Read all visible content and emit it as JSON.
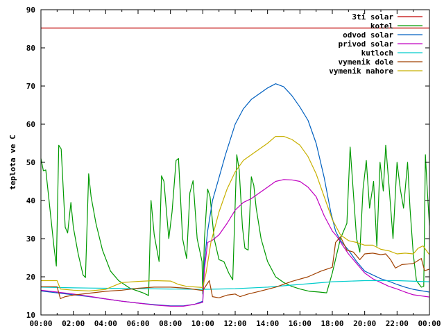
{
  "chart_data": {
    "type": "line",
    "ylabel": "teplota ve C",
    "xlabel": "",
    "ylim": [
      10,
      90
    ],
    "yticks": [
      "10",
      "20",
      "30",
      "40",
      "50",
      "60",
      "70",
      "80",
      "90"
    ],
    "xlim": [
      0,
      24
    ],
    "xticks": [
      "00:00",
      "02:00",
      "04:00",
      "06:00",
      "08:00",
      "10:00",
      "12:00",
      "14:00",
      "16:00",
      "18:00",
      "20:00",
      "22:00",
      "00:00"
    ],
    "grid": false,
    "legend_position": "top-right",
    "series": [
      {
        "name": "3ti solar",
        "color": "#c00000",
        "points": [
          [
            0,
            85.2
          ],
          [
            24,
            85.2
          ]
        ]
      },
      {
        "name": "kotel",
        "color": "#009900",
        "points": [
          [
            0,
            51
          ],
          [
            0.15,
            47.8
          ],
          [
            0.3,
            48
          ],
          [
            0.5,
            40
          ],
          [
            0.8,
            28
          ],
          [
            0.95,
            22.8
          ],
          [
            1.1,
            54.5
          ],
          [
            1.25,
            53.5
          ],
          [
            1.5,
            33
          ],
          [
            1.65,
            31.5
          ],
          [
            1.85,
            39.5
          ],
          [
            2.0,
            33
          ],
          [
            2.3,
            26
          ],
          [
            2.6,
            20.5
          ],
          [
            2.75,
            19.8
          ],
          [
            2.95,
            47
          ],
          [
            3.1,
            41
          ],
          [
            3.4,
            34
          ],
          [
            3.8,
            27
          ],
          [
            4.3,
            21.5
          ],
          [
            4.8,
            19
          ],
          [
            5.5,
            17
          ],
          [
            6.3,
            15.8
          ],
          [
            6.65,
            15.1
          ],
          [
            6.8,
            40
          ],
          [
            7.0,
            31
          ],
          [
            7.3,
            24
          ],
          [
            7.45,
            46.5
          ],
          [
            7.6,
            45
          ],
          [
            7.9,
            30
          ],
          [
            8.1,
            37
          ],
          [
            8.35,
            50.5
          ],
          [
            8.5,
            51
          ],
          [
            8.75,
            30
          ],
          [
            9.0,
            24.8
          ],
          [
            9.2,
            42
          ],
          [
            9.4,
            45.2
          ],
          [
            9.65,
            30
          ],
          [
            9.95,
            24
          ],
          [
            10.0,
            15.5
          ],
          [
            10.1,
            30
          ],
          [
            10.3,
            43
          ],
          [
            10.45,
            41
          ],
          [
            10.7,
            30
          ],
          [
            11.0,
            24.5
          ],
          [
            11.3,
            24
          ],
          [
            11.6,
            21
          ],
          [
            11.85,
            19.2
          ],
          [
            12.1,
            52
          ],
          [
            12.25,
            48
          ],
          [
            12.45,
            33
          ],
          [
            12.6,
            27.5
          ],
          [
            12.8,
            27
          ],
          [
            13.0,
            46.2
          ],
          [
            13.15,
            44
          ],
          [
            13.3,
            38
          ],
          [
            13.6,
            30
          ],
          [
            14.0,
            24
          ],
          [
            14.5,
            20
          ],
          [
            15.0,
            18.5
          ],
          [
            15.5,
            17.5
          ],
          [
            16.0,
            16.8
          ],
          [
            16.6,
            16.2
          ],
          [
            17.2,
            16
          ],
          [
            17.65,
            15.8
          ],
          [
            18.0,
            21
          ],
          [
            18.5,
            30
          ],
          [
            18.9,
            34
          ],
          [
            19.1,
            54
          ],
          [
            19.25,
            45
          ],
          [
            19.5,
            30
          ],
          [
            19.7,
            26.5
          ],
          [
            19.9,
            43
          ],
          [
            20.1,
            50.5
          ],
          [
            20.3,
            38
          ],
          [
            20.55,
            45
          ],
          [
            20.75,
            28
          ],
          [
            20.95,
            50
          ],
          [
            21.15,
            42.5
          ],
          [
            21.3,
            54.5
          ],
          [
            21.5,
            44
          ],
          [
            21.75,
            30
          ],
          [
            22.0,
            50
          ],
          [
            22.2,
            43
          ],
          [
            22.4,
            38
          ],
          [
            22.65,
            50
          ],
          [
            22.8,
            38
          ],
          [
            23.0,
            26
          ],
          [
            23.2,
            19
          ],
          [
            23.5,
            17.3
          ],
          [
            23.65,
            17.5
          ],
          [
            23.75,
            52
          ],
          [
            23.85,
            44
          ],
          [
            24,
            33.5
          ]
        ]
      },
      {
        "name": "odvod solar",
        "color": "#0060c0",
        "points": [
          [
            0,
            16.3
          ],
          [
            1,
            15.8
          ],
          [
            2,
            15.3
          ],
          [
            3,
            14.8
          ],
          [
            4,
            14.2
          ],
          [
            5,
            13.6
          ],
          [
            6,
            13.1
          ],
          [
            7,
            12.7
          ],
          [
            8,
            12.4
          ],
          [
            8.8,
            12.4
          ],
          [
            9.5,
            12.8
          ],
          [
            10.0,
            13.6
          ],
          [
            10.1,
            24
          ],
          [
            10.3,
            32
          ],
          [
            10.6,
            40
          ],
          [
            11.0,
            46
          ],
          [
            11.4,
            52
          ],
          [
            12.0,
            60
          ],
          [
            12.5,
            64
          ],
          [
            13.0,
            66.5
          ],
          [
            13.5,
            68
          ],
          [
            14.0,
            69.5
          ],
          [
            14.5,
            70.6
          ],
          [
            15.0,
            69.8
          ],
          [
            15.5,
            67.5
          ],
          [
            16.0,
            64.5
          ],
          [
            16.5,
            61
          ],
          [
            17.0,
            55
          ],
          [
            17.5,
            46
          ],
          [
            17.9,
            37
          ],
          [
            18.2,
            32
          ],
          [
            18.5,
            29.5
          ],
          [
            19.0,
            27
          ],
          [
            19.5,
            24
          ],
          [
            20.0,
            21.5
          ],
          [
            20.5,
            20.5
          ],
          [
            21.0,
            19.5
          ],
          [
            21.5,
            18.8
          ],
          [
            22.0,
            18
          ],
          [
            22.5,
            17.3
          ],
          [
            23.0,
            16.7
          ],
          [
            24,
            16
          ]
        ]
      },
      {
        "name": "privod solar",
        "color": "#c000c0",
        "points": [
          [
            0,
            16.5
          ],
          [
            1,
            16
          ],
          [
            2,
            15.5
          ],
          [
            3,
            14.9
          ],
          [
            4,
            14.2
          ],
          [
            5,
            13.6
          ],
          [
            6,
            13.1
          ],
          [
            7,
            12.6
          ],
          [
            8,
            12.3
          ],
          [
            8.8,
            12.3
          ],
          [
            9.5,
            12.8
          ],
          [
            10.0,
            13.3
          ],
          [
            10.1,
            22
          ],
          [
            10.3,
            29
          ],
          [
            10.6,
            29.6
          ],
          [
            11.0,
            31
          ],
          [
            11.5,
            34
          ],
          [
            12.0,
            37.5
          ],
          [
            12.5,
            39.5
          ],
          [
            13.0,
            40.5
          ],
          [
            13.5,
            42
          ],
          [
            14.0,
            43.5
          ],
          [
            14.5,
            45
          ],
          [
            15.0,
            45.5
          ],
          [
            15.5,
            45.4
          ],
          [
            16.0,
            45
          ],
          [
            16.5,
            43.5
          ],
          [
            17.0,
            41
          ],
          [
            17.5,
            36
          ],
          [
            18.0,
            32
          ],
          [
            18.3,
            30.5
          ],
          [
            18.6,
            28.5
          ],
          [
            19.0,
            26
          ],
          [
            19.5,
            23.5
          ],
          [
            20.0,
            21
          ],
          [
            20.5,
            19.5
          ],
          [
            21.0,
            18.5
          ],
          [
            21.5,
            17.5
          ],
          [
            22.0,
            16.8
          ],
          [
            22.5,
            16
          ],
          [
            23.0,
            15.3
          ],
          [
            24,
            14.7
          ]
        ]
      },
      {
        "name": "kutloch",
        "color": "#00cccc",
        "points": [
          [
            0,
            17.3
          ],
          [
            2,
            17.1
          ],
          [
            4,
            17.0
          ],
          [
            6,
            16.9
          ],
          [
            8,
            16.8
          ],
          [
            10,
            16.7
          ],
          [
            12,
            16.9
          ],
          [
            14,
            17.3
          ],
          [
            16,
            18
          ],
          [
            18,
            18.7
          ],
          [
            20,
            19
          ],
          [
            22,
            19
          ],
          [
            24,
            18.7
          ]
        ]
      },
      {
        "name": "vymenik dole",
        "color": "#a04000",
        "points": [
          [
            0,
            17.4
          ],
          [
            1,
            17.4
          ],
          [
            1.2,
            14.3
          ],
          [
            1.5,
            14.8
          ],
          [
            2,
            15.2
          ],
          [
            3,
            15.7
          ],
          [
            4,
            16.2
          ],
          [
            5,
            16.5
          ],
          [
            6,
            17
          ],
          [
            7,
            17.3
          ],
          [
            8,
            17.3
          ],
          [
            9,
            17
          ],
          [
            10,
            16.4
          ],
          [
            10.4,
            19
          ],
          [
            10.6,
            14.8
          ],
          [
            11,
            14.5
          ],
          [
            11.5,
            15.2
          ],
          [
            12,
            15.5
          ],
          [
            12.3,
            14.8
          ],
          [
            12.8,
            15.5
          ],
          [
            13.5,
            16.2
          ],
          [
            14.5,
            17.3
          ],
          [
            15.5,
            18.8
          ],
          [
            16.5,
            20
          ],
          [
            17.3,
            21.5
          ],
          [
            18.0,
            22.5
          ],
          [
            18.2,
            29
          ],
          [
            18.5,
            30.5
          ],
          [
            18.9,
            27
          ],
          [
            19.3,
            26.5
          ],
          [
            19.7,
            24.5
          ],
          [
            20.0,
            26
          ],
          [
            20.5,
            26.2
          ],
          [
            21.0,
            25.8
          ],
          [
            21.3,
            26
          ],
          [
            21.6,
            24.5
          ],
          [
            21.9,
            22.3
          ],
          [
            22.3,
            23.2
          ],
          [
            23.0,
            23.5
          ],
          [
            23.5,
            24.8
          ],
          [
            23.7,
            21.6
          ],
          [
            24,
            22
          ]
        ]
      },
      {
        "name": "vymenik nahore",
        "color": "#c8b000",
        "points": [
          [
            0,
            19
          ],
          [
            1,
            19
          ],
          [
            1.2,
            16.8
          ],
          [
            2,
            16.5
          ],
          [
            3,
            16.3
          ],
          [
            4,
            16.7
          ],
          [
            5,
            18.5
          ],
          [
            6,
            18.8
          ],
          [
            7,
            19
          ],
          [
            8,
            18.9
          ],
          [
            8.5,
            18
          ],
          [
            9,
            17.5
          ],
          [
            10,
            17.2
          ],
          [
            10.2,
            21
          ],
          [
            10.5,
            29
          ],
          [
            11.0,
            37
          ],
          [
            11.5,
            43
          ],
          [
            12.0,
            47.5
          ],
          [
            12.5,
            50.5
          ],
          [
            13.0,
            52
          ],
          [
            13.5,
            53.5
          ],
          [
            14.0,
            55
          ],
          [
            14.5,
            56.8
          ],
          [
            15.0,
            56.8
          ],
          [
            15.5,
            56
          ],
          [
            16.0,
            54.5
          ],
          [
            16.5,
            51.5
          ],
          [
            17.0,
            47
          ],
          [
            17.5,
            41
          ],
          [
            18.0,
            35
          ],
          [
            18.5,
            31
          ],
          [
            19.0,
            29.5
          ],
          [
            19.5,
            29
          ],
          [
            20.0,
            28.3
          ],
          [
            20.5,
            28.3
          ],
          [
            21.0,
            27.2
          ],
          [
            21.5,
            26.8
          ],
          [
            22.0,
            26
          ],
          [
            22.5,
            26.2
          ],
          [
            23.0,
            26
          ],
          [
            23.3,
            27.5
          ],
          [
            23.6,
            28.1
          ],
          [
            24,
            25.8
          ]
        ]
      }
    ]
  }
}
